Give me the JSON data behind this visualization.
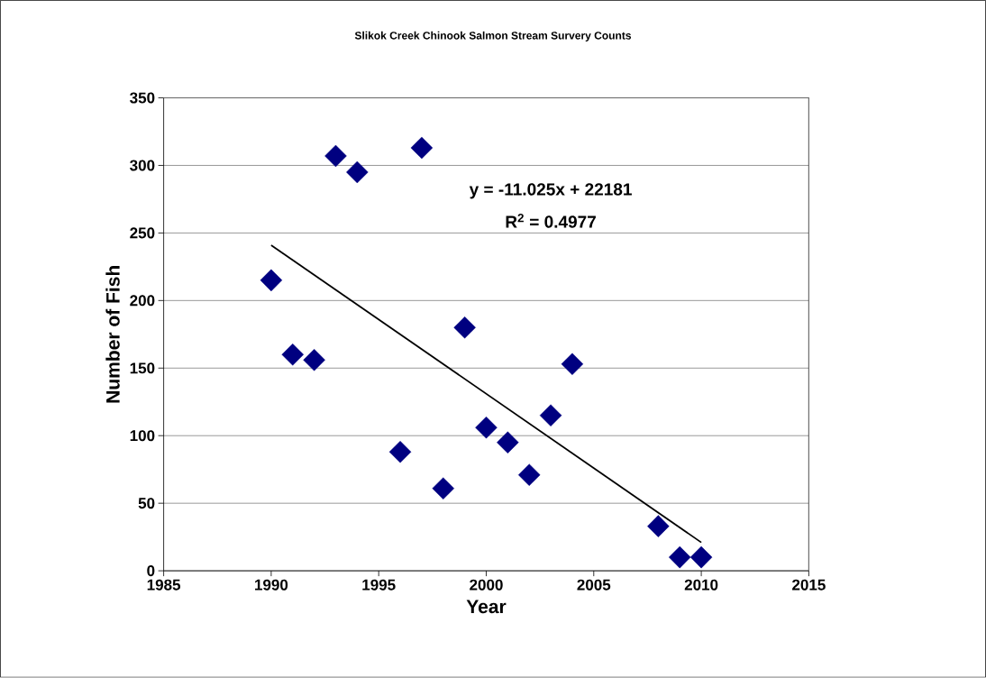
{
  "chart_data": {
    "type": "scatter",
    "title": "Slikok Creek Chinook Salmon Stream Survery Counts",
    "xlabel": "Year",
    "ylabel": "Number of Fish",
    "xlim": [
      1985,
      2015
    ],
    "xticks": [
      1985,
      1990,
      1995,
      2000,
      2005,
      2010,
      2015
    ],
    "ylim": [
      0,
      350
    ],
    "yticks": [
      0,
      50,
      100,
      150,
      200,
      250,
      300,
      350
    ],
    "grid": "y",
    "marker": "diamond",
    "series": [
      {
        "color": "#000080",
        "x": [
          1990,
          1991,
          1992,
          1993,
          1994,
          1996,
          1997,
          1998,
          1999,
          2000,
          2001,
          2002,
          2003,
          2004,
          2008,
          2009,
          2010
        ],
        "values": [
          215,
          160,
          156,
          307,
          295,
          88,
          313,
          61,
          180,
          106,
          95,
          71,
          115,
          153,
          33,
          10,
          10
        ]
      },
      {
        "type": "line",
        "marker": "none",
        "line_style": "solid",
        "color": "#000000",
        "x": [
          1990,
          2010
        ],
        "values": [
          241,
          21
        ]
      }
    ],
    "annotations": [
      "y = -11.025x + 22181",
      "R$^{2}$ = 0.4977"
    ]
  }
}
